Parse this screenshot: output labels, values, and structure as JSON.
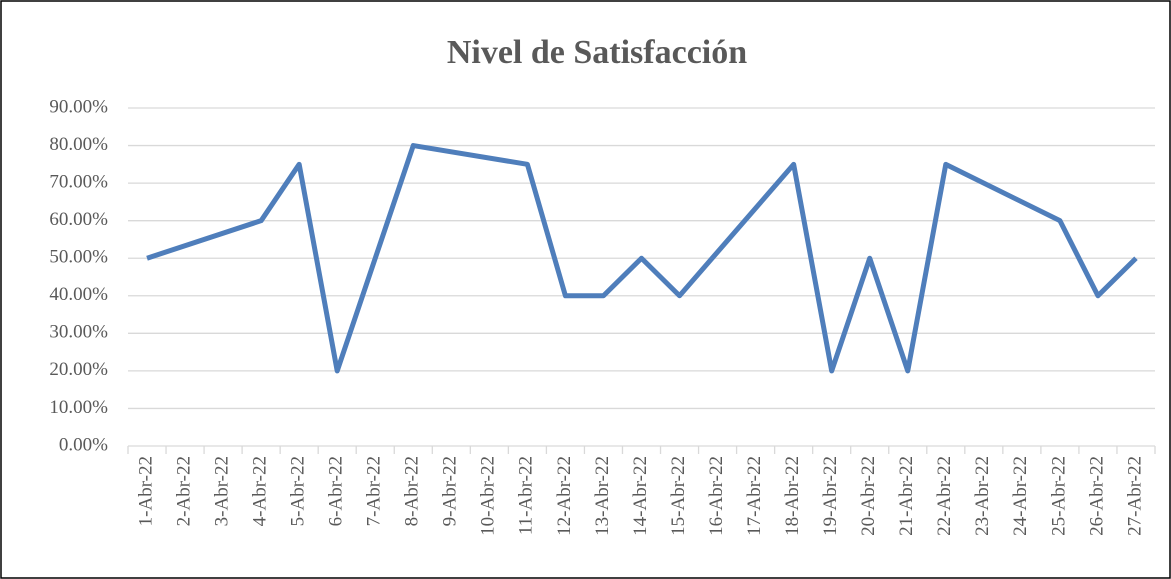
{
  "chart_data": {
    "type": "line",
    "title": "Nivel de Satisfacción",
    "xticks": [
      "1-Abr-22",
      "2-Abr-22",
      "3-Abr-22",
      "4-Abr-22",
      "5-Abr-22",
      "6-Abr-22",
      "7-Abr-22",
      "8-Abr-22",
      "9-Abr-22",
      "10-Abr-22",
      "11-Abr-22",
      "12-Abr-22",
      "13-Abr-22",
      "14-Abr-22",
      "15-Abr-22",
      "16-Abr-22",
      "17-Abr-22",
      "18-Abr-22",
      "19-Abr-22",
      "20-Abr-22",
      "21-Abr-22",
      "22-Abr-22",
      "23-Abr-22",
      "24-Abr-22",
      "25-Abr-22",
      "26-Abr-22",
      "27-Abr-22"
    ],
    "x": [
      "1-Abr-22",
      "4-Abr-22",
      "5-Abr-22",
      "6-Abr-22",
      "8-Abr-22",
      "11-Abr-22",
      "12-Abr-22",
      "13-Abr-22",
      "14-Abr-22",
      "15-Abr-22",
      "18-Abr-22",
      "19-Abr-22",
      "20-Abr-22",
      "21-Abr-22",
      "22-Abr-22",
      "25-Abr-22",
      "26-Abr-22",
      "27-Abr-22"
    ],
    "series": [
      {
        "color": "#4f7ebb",
        "values": [
          50,
          60,
          75,
          20,
          80,
          75,
          40,
          40,
          50,
          40,
          75,
          20,
          50,
          20,
          75,
          60,
          40,
          50
        ]
      }
    ],
    "ylim": [
      0,
      90
    ],
    "yticks": [
      {
        "value": 0,
        "label": "0.00%"
      },
      {
        "value": 10,
        "label": "10.00%"
      },
      {
        "value": 20,
        "label": "20.00%"
      },
      {
        "value": 30,
        "label": "30.00%"
      },
      {
        "value": 40,
        "label": "40.00%"
      },
      {
        "value": 50,
        "label": "50.00%"
      },
      {
        "value": 60,
        "label": "60.00%"
      },
      {
        "value": 70,
        "label": "70.00%"
      },
      {
        "value": 80,
        "label": "80.00%"
      },
      {
        "value": 90,
        "label": "90.00%"
      }
    ],
    "grid": true
  }
}
